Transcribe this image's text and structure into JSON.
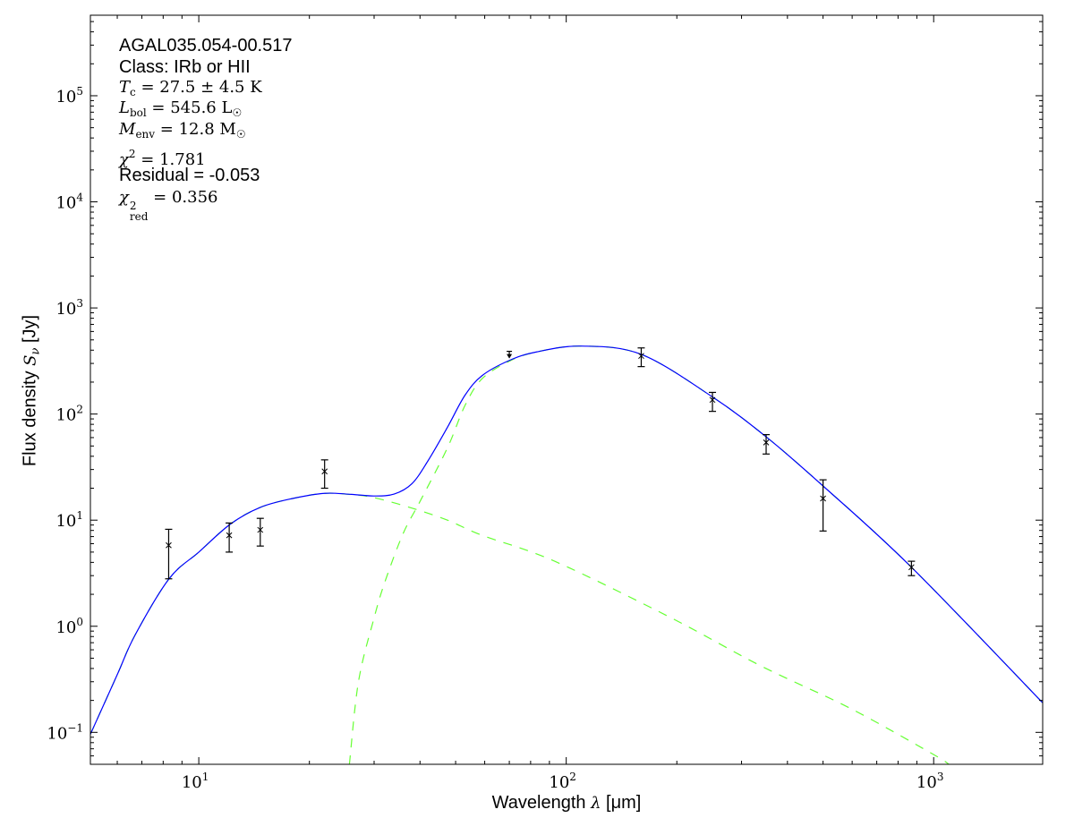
{
  "chart_data": {
    "type": "scatter",
    "xlabel": "Wavelength λ [μm]",
    "ylabel": "Flux density S_ν [Jy]",
    "xlabel_parts": {
      "text": "Wavelength ",
      "sym": "λ",
      "unit": " [μm]"
    },
    "ylabel_parts": {
      "text": "Flux density ",
      "sym": "S",
      "sub": "ν",
      "unit": " [Jy]"
    },
    "xscale": "log",
    "yscale": "log",
    "xlim": [
      5.07,
      1980
    ],
    "ylim": [
      0.05,
      574000
    ],
    "grid": false,
    "x_ticks": [
      {
        "v": 10,
        "label": "10",
        "exp": "1"
      },
      {
        "v": 100,
        "label": "10",
        "exp": "2"
      },
      {
        "v": 1000,
        "label": "10",
        "exp": "3"
      }
    ],
    "y_ticks": [
      {
        "v": 0.1,
        "label": "10",
        "exp": "−1"
      },
      {
        "v": 1,
        "label": "10",
        "exp": "0"
      },
      {
        "v": 10,
        "label": "10",
        "exp": "1"
      },
      {
        "v": 100,
        "label": "10",
        "exp": "2"
      },
      {
        "v": 1000,
        "label": "10",
        "exp": "3"
      },
      {
        "v": 10000,
        "label": "10",
        "exp": "4"
      },
      {
        "v": 100000,
        "label": "10",
        "exp": "5"
      }
    ],
    "points": [
      {
        "x": 8.28,
        "y": 5.8,
        "ylo": 2.8,
        "yhi": 8.2
      },
      {
        "x": 12.1,
        "y": 7.2,
        "ylo": 5.0,
        "yhi": 9.4
      },
      {
        "x": 14.7,
        "y": 8.1,
        "ylo": 5.7,
        "yhi": 10.4
      },
      {
        "x": 22,
        "y": 28.8,
        "ylo": 20,
        "yhi": 37
      },
      {
        "x": 160,
        "y": 353,
        "ylo": 280,
        "yhi": 420
      },
      {
        "x": 250,
        "y": 136,
        "ylo": 106,
        "yhi": 160
      },
      {
        "x": 350,
        "y": 54,
        "ylo": 42,
        "yhi": 64
      },
      {
        "x": 500,
        "y": 16,
        "ylo": 7.9,
        "yhi": 24
      },
      {
        "x": 870,
        "y": 3.6,
        "ylo": 3.0,
        "yhi": 4.1
      }
    ],
    "upper_limits": [
      {
        "x": 70,
        "y": 390,
        "to": 340
      }
    ],
    "series": [
      {
        "style": "solid",
        "color": "#0000ff",
        "points": [
          [
            5.07,
            0.096
          ],
          [
            6,
            0.35
          ],
          [
            6.7,
            0.82
          ],
          [
            8.3,
            2.8
          ],
          [
            10,
            5.0
          ],
          [
            12.2,
            9.2
          ],
          [
            14.7,
            13.2
          ],
          [
            18,
            16.0
          ],
          [
            22,
            17.9
          ],
          [
            26,
            17.5
          ],
          [
            30,
            16.9
          ],
          [
            34,
            17.6
          ],
          [
            38,
            22
          ],
          [
            42,
            36
          ],
          [
            47.5,
            75
          ],
          [
            53,
            150
          ],
          [
            59,
            230
          ],
          [
            70,
            320
          ],
          [
            83,
            385
          ],
          [
            110,
            437
          ],
          [
            160,
            365
          ],
          [
            250,
            145
          ],
          [
            350,
            61
          ],
          [
            500,
            21
          ],
          [
            870,
            3.6
          ],
          [
            1980,
            0.19
          ]
        ]
      },
      {
        "style": "dashed",
        "color": "#66ff33",
        "points": [
          [
            25.7,
            0.05
          ],
          [
            27.2,
            0.3
          ],
          [
            30,
            1.2
          ],
          [
            32.2,
            2.7
          ],
          [
            36,
            7.5
          ],
          [
            40,
            15
          ],
          [
            47.5,
            48
          ],
          [
            53,
            120
          ],
          [
            59,
            215
          ],
          [
            70,
            315
          ],
          [
            83,
            385
          ],
          [
            110,
            437
          ],
          [
            160,
            365
          ],
          [
            250,
            145
          ],
          [
            350,
            61
          ],
          [
            500,
            21
          ],
          [
            870,
            3.6
          ],
          [
            1980,
            0.19
          ]
        ]
      },
      {
        "style": "dashed",
        "color": "#66ff33",
        "points": [
          [
            5.07,
            0.096
          ],
          [
            6,
            0.35
          ],
          [
            6.7,
            0.82
          ],
          [
            8.3,
            2.8
          ],
          [
            10,
            5.0
          ],
          [
            12.2,
            9.2
          ],
          [
            14.7,
            13.2
          ],
          [
            18,
            16.0
          ],
          [
            22,
            17.9
          ],
          [
            26,
            17.4
          ],
          [
            30,
            16.3
          ],
          [
            38,
            13
          ],
          [
            47.5,
            10
          ],
          [
            59,
            7.2
          ],
          [
            93,
            4.1
          ],
          [
            193,
            1.2
          ],
          [
            340,
            0.42
          ],
          [
            590,
            0.17
          ],
          [
            990,
            0.063
          ],
          [
            1100,
            0.05
          ]
        ]
      }
    ],
    "annotations": {
      "source": "AGAL035.054-00.517",
      "class": "Class: IRb or HII",
      "tc": {
        "sym": "T",
        "sub": "c",
        "rest": " = 27.5 ± 4.5 K"
      },
      "lbol": {
        "sym": "L",
        "sub": "bol",
        "rest": " = 545.6 L",
        "unit_sub": "☉"
      },
      "menv": {
        "sym": "M",
        "sub": "env",
        "rest": " = 12.8 M",
        "unit_sub": "☉"
      },
      "chi2": {
        "sym": "χ",
        "sup": "2",
        "rest": " = 1.781"
      },
      "residual": "Residual = -0.053",
      "chi2red": {
        "sym": "χ",
        "sup": "2",
        "sub": "red",
        "rest": " = 0.356"
      }
    }
  }
}
